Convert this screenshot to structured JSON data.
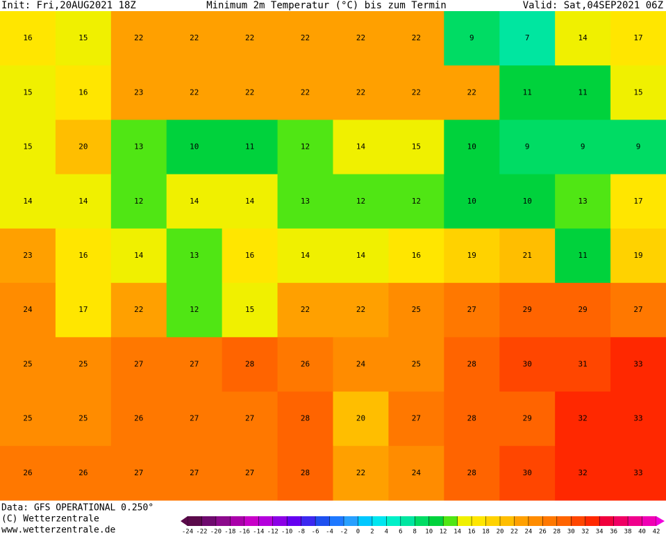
{
  "header": {
    "init": "Init: Fri,20AUG2021 18Z",
    "title": "Minimum 2m Temperatur (°C) bis zum Termin",
    "valid": "Valid: Sat,04SEP2021 06Z"
  },
  "footer": {
    "data": "Data: GFS OPERATIONAL 0.250°",
    "copyright": "(C) Wetterzentrale",
    "url": "www.wetterzentrale.de"
  },
  "colorbar": {
    "labels": [
      -24,
      -22,
      -20,
      -18,
      -16,
      -14,
      -12,
      -10,
      -8,
      -6,
      -4,
      -2,
      0,
      2,
      4,
      6,
      8,
      10,
      12,
      14,
      16,
      18,
      20,
      22,
      24,
      26,
      28,
      30,
      32,
      34,
      36,
      38,
      40,
      42
    ],
    "colors": [
      "#5a0a4a",
      "#6e0a6e",
      "#8c0a8c",
      "#aa00aa",
      "#c800c8",
      "#b400dc",
      "#8c00e6",
      "#6400f0",
      "#3c28f0",
      "#1e50f0",
      "#1e78ff",
      "#28a0ff",
      "#00c8ff",
      "#00e6f0",
      "#00f0c8",
      "#00e6a0",
      "#00dc64",
      "#00d23c",
      "#50e614",
      "#f0f000",
      "#ffe600",
      "#ffd200",
      "#ffbe00",
      "#ffa000",
      "#ff8c00",
      "#ff7800",
      "#ff6400",
      "#ff4600",
      "#ff2800",
      "#f0003c",
      "#f00064",
      "#f0008c",
      "#f000b4",
      "#f000dc"
    ]
  },
  "grid": {
    "rows": [
      [
        16,
        15,
        22,
        22,
        22,
        22,
        22,
        22,
        9,
        7,
        14,
        17
      ],
      [
        15,
        16,
        23,
        22,
        22,
        22,
        22,
        22,
        22,
        11,
        11,
        15
      ],
      [
        15,
        20,
        13,
        10,
        11,
        12,
        14,
        15,
        10,
        9,
        9,
        9
      ],
      [
        14,
        14,
        12,
        14,
        14,
        13,
        12,
        12,
        10,
        10,
        13,
        17
      ],
      [
        23,
        16,
        14,
        13,
        16,
        14,
        14,
        16,
        19,
        21,
        11,
        19
      ],
      [
        24,
        17,
        22,
        12,
        15,
        22,
        22,
        25,
        27,
        29,
        29,
        27
      ],
      [
        25,
        25,
        27,
        27,
        28,
        26,
        24,
        25,
        28,
        30,
        31,
        33
      ],
      [
        25,
        25,
        26,
        27,
        27,
        28,
        20,
        27,
        28,
        29,
        32,
        33
      ],
      [
        26,
        26,
        27,
        27,
        27,
        28,
        22,
        24,
        28,
        30,
        32,
        33
      ]
    ]
  }
}
